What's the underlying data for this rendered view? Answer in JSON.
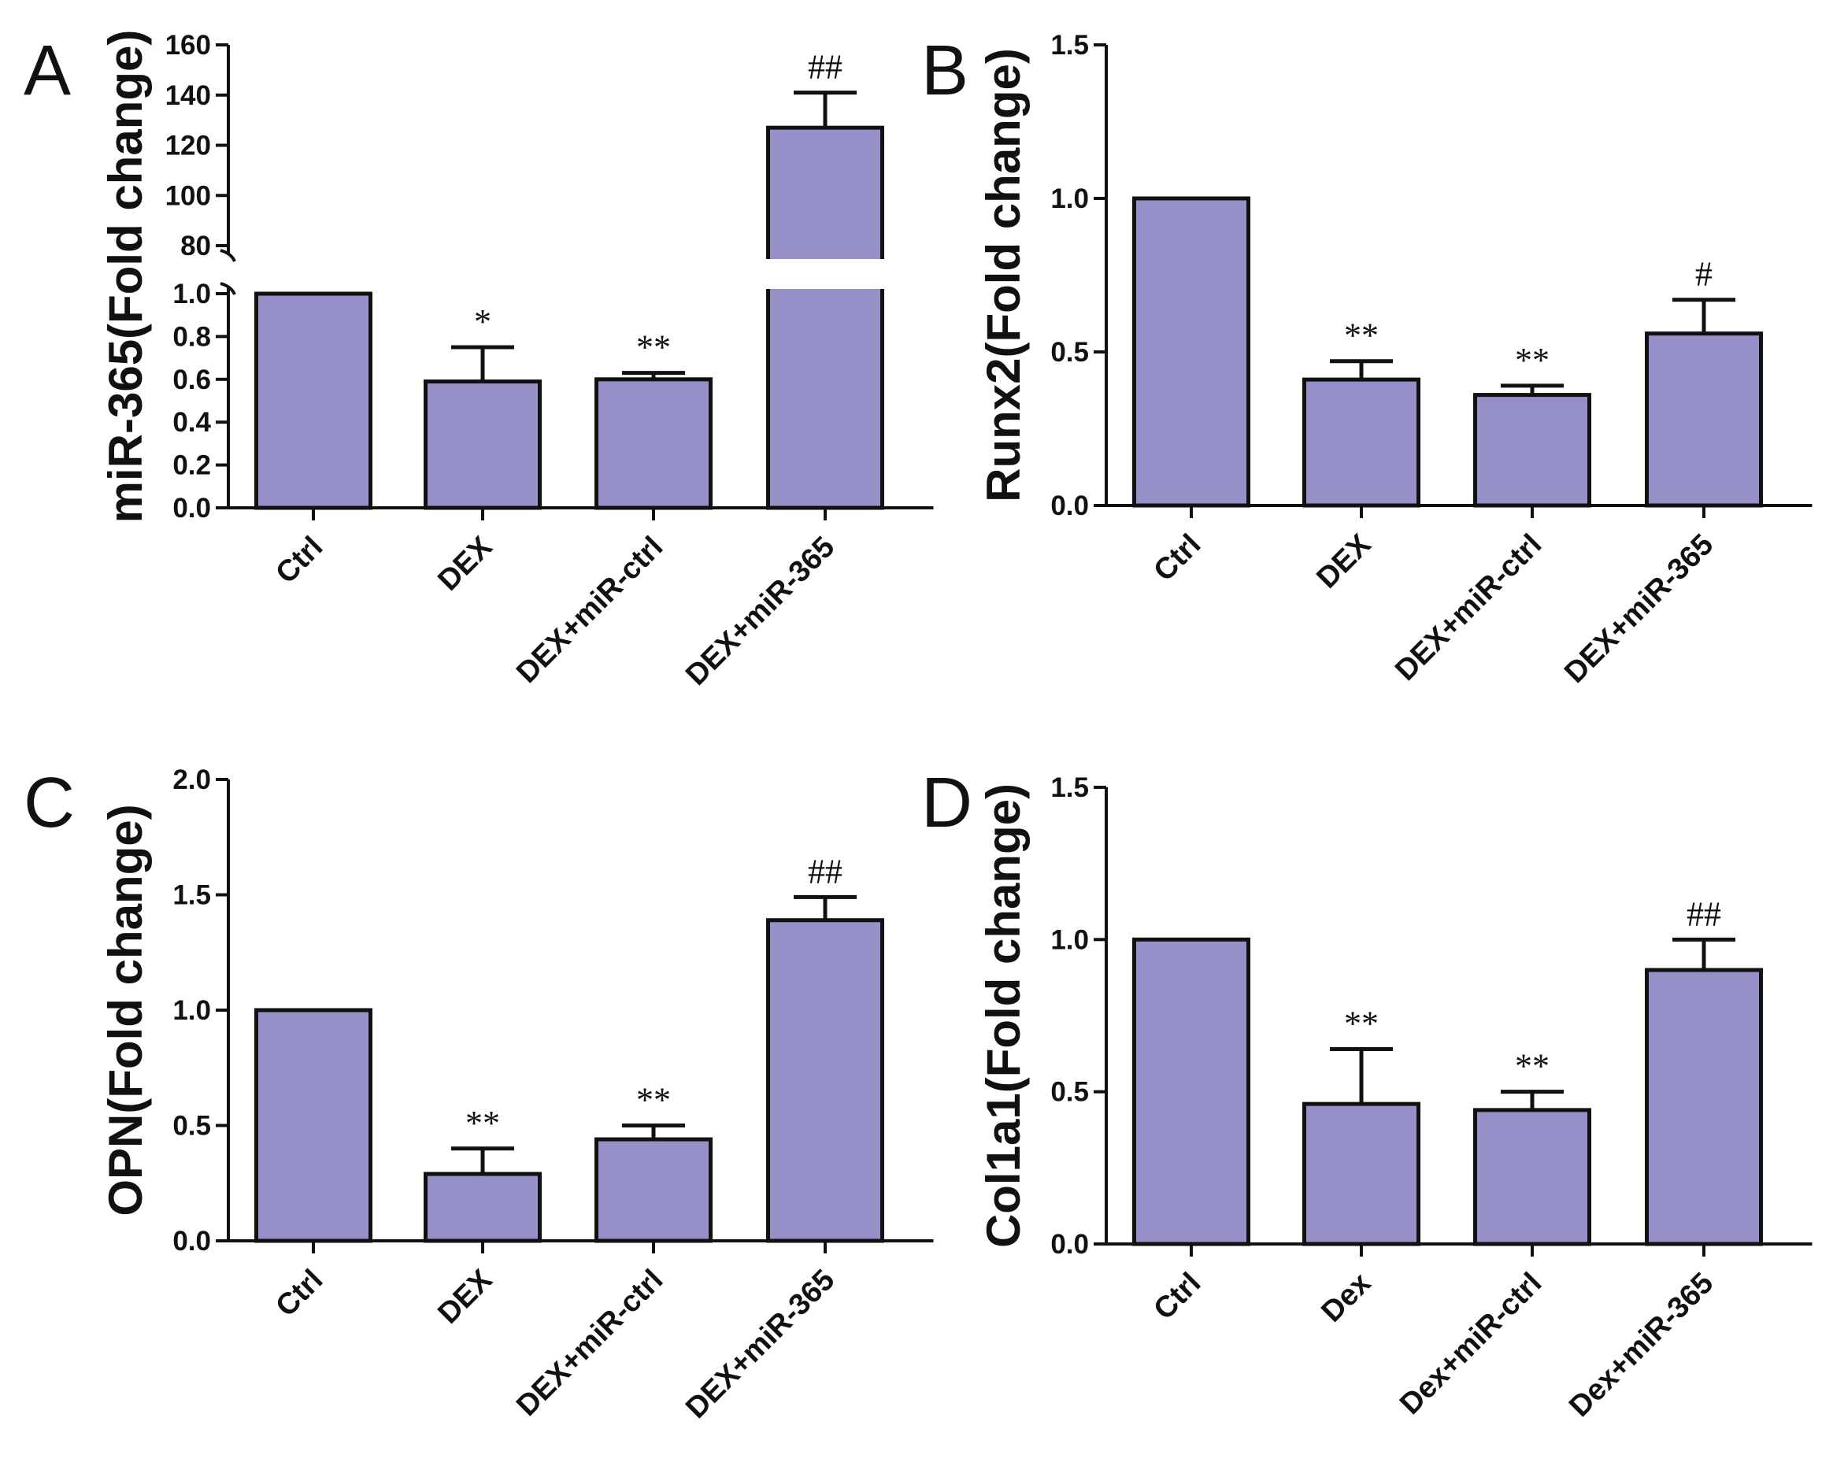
{
  "chart_data": [
    {
      "panel": "A",
      "type": "bar",
      "ylabel": "miR-365(Fold change)",
      "categories": [
        "Ctrl",
        "DEX",
        "DEX+miR-ctrl",
        "DEX+miR-365"
      ],
      "values": [
        1.0,
        0.59,
        0.6,
        127
      ],
      "errors": [
        0,
        0.16,
        0.03,
        14
      ],
      "annotations": [
        "",
        "*",
        "**",
        "##"
      ],
      "broken_axis": true,
      "lower_ticks": [
        "0.0",
        "0.2",
        "0.4",
        "0.6",
        "0.8",
        "1.0"
      ],
      "upper_ticks": [
        "80",
        "100",
        "120",
        "140",
        "160"
      ],
      "lower_range": [
        0,
        1.0
      ],
      "upper_range": [
        80,
        160
      ],
      "color": "#9590c8"
    },
    {
      "panel": "B",
      "type": "bar",
      "ylabel": "Runx2(Fold change)",
      "categories": [
        "Ctrl",
        "DEX",
        "DEX+miR-ctrl",
        "DEX+miR-365"
      ],
      "values": [
        1.0,
        0.41,
        0.36,
        0.56
      ],
      "errors": [
        0,
        0.06,
        0.03,
        0.11
      ],
      "annotations": [
        "",
        "**",
        "**",
        "#"
      ],
      "ylim": [
        0,
        1.5
      ],
      "yticks": [
        "0.0",
        "0.5",
        "1.0",
        "1.5"
      ],
      "color": "#9590c8"
    },
    {
      "panel": "C",
      "type": "bar",
      "ylabel": "OPN(Fold change)",
      "categories": [
        "Ctrl",
        "DEX",
        "DEX+miR-ctrl",
        "DEX+miR-365"
      ],
      "values": [
        1.0,
        0.29,
        0.44,
        1.39
      ],
      "errors": [
        0,
        0.11,
        0.06,
        0.1
      ],
      "annotations": [
        "",
        "**",
        "**",
        "##"
      ],
      "ylim": [
        0,
        2.0
      ],
      "yticks": [
        "0.0",
        "0.5",
        "1.0",
        "1.5",
        "2.0"
      ],
      "color": "#9590c8"
    },
    {
      "panel": "D",
      "type": "bar",
      "ylabel": "Col1a1(Fold change)",
      "categories": [
        "Ctrl",
        "Dex",
        "Dex+miR-ctrl",
        "Dex+miR-365"
      ],
      "values": [
        1.0,
        0.46,
        0.44,
        0.9
      ],
      "errors": [
        0,
        0.18,
        0.06,
        0.1
      ],
      "annotations": [
        "",
        "**",
        "**",
        "##"
      ],
      "ylim": [
        0,
        1.5
      ],
      "yticks": [
        "0.0",
        "0.5",
        "1.0",
        "1.5"
      ],
      "color": "#9590c8"
    }
  ]
}
